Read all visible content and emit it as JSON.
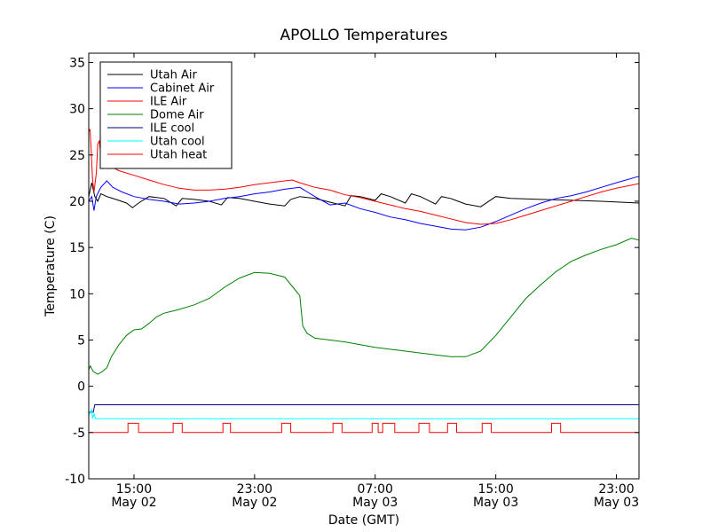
{
  "chart_data": {
    "type": "line",
    "title": "APOLLO Temperatures",
    "xlabel": "Date (GMT)",
    "ylabel": "Temperature (C)",
    "x_unit": "hours since May 02 11:00 GMT",
    "xlim": [
      0,
      36.5
    ],
    "ylim": [
      -10,
      36
    ],
    "yticks": [
      -10,
      -5,
      0,
      5,
      10,
      15,
      20,
      25,
      30,
      35
    ],
    "xticks": [
      {
        "value": 3,
        "time": "15:00",
        "date": "May 02"
      },
      {
        "value": 11,
        "time": "23:00",
        "date": "May 02"
      },
      {
        "value": 19,
        "time": "07:00",
        "date": "May 03"
      },
      {
        "value": 27,
        "time": "15:00",
        "date": "May 03"
      },
      {
        "value": 35,
        "time": "23:00",
        "date": "May 03"
      }
    ],
    "legend_position": "top-left",
    "series": [
      {
        "name": "Utah Air",
        "color": "#000000",
        "x": [
          0,
          0.2,
          0.4,
          0.6,
          0.8,
          1.2,
          1.8,
          2.5,
          2.9,
          3.3,
          4,
          5,
          5.8,
          6.2,
          7,
          8,
          8.8,
          9.2,
          10,
          11,
          12,
          13,
          13.4,
          14,
          15,
          16,
          17,
          17.4,
          18,
          19,
          19.4,
          20,
          21,
          21.4,
          22,
          23,
          23.4,
          24,
          25,
          26,
          27,
          28,
          30,
          32,
          34,
          36.5
        ],
        "y": [
          20.5,
          22,
          20.5,
          20,
          20.8,
          20.5,
          20.2,
          19.8,
          19.3,
          19.8,
          20.5,
          20.3,
          19.5,
          20.3,
          20.2,
          20,
          19.6,
          20.4,
          20.3,
          20,
          19.7,
          19.5,
          20.2,
          20.5,
          20.3,
          19.9,
          19.5,
          20.6,
          20.5,
          20.1,
          20.8,
          20.5,
          19.8,
          20.8,
          20.5,
          19.7,
          20.5,
          20.3,
          19.7,
          19.4,
          20.5,
          20.3,
          20.2,
          20.1,
          20,
          19.8
        ]
      },
      {
        "name": "Cabinet Air",
        "color": "#0000ff",
        "x": [
          0,
          0.2,
          0.35,
          0.5,
          0.8,
          1.2,
          1.6,
          2.2,
          3,
          4,
          5,
          6,
          7,
          8,
          9,
          10,
          11,
          12,
          13,
          14,
          14.5,
          15,
          16,
          17,
          18,
          19,
          20,
          21,
          22,
          23,
          24,
          25,
          26,
          27,
          28,
          29,
          30,
          31,
          32,
          33,
          34,
          35,
          36.5
        ],
        "y": [
          20,
          20.5,
          19,
          20.5,
          21.5,
          22.2,
          21.5,
          21,
          20.5,
          20.2,
          20,
          19.7,
          19.8,
          20,
          20.3,
          20.5,
          20.8,
          21,
          21.3,
          21.5,
          21,
          20.5,
          19.6,
          19.8,
          19.2,
          18.8,
          18.3,
          18,
          17.6,
          17.3,
          17,
          16.9,
          17.2,
          17.8,
          18.5,
          19.2,
          19.8,
          20.3,
          20.6,
          21,
          21.5,
          22,
          22.7
        ]
      },
      {
        "name": "ILE Air",
        "color": "#ff0000",
        "x": [
          0,
          0.08,
          0.15,
          0.25,
          0.35,
          0.5,
          0.6,
          0.7,
          0.8,
          1.2,
          2,
          3,
          4,
          5,
          6,
          7,
          8,
          9,
          10,
          11,
          12,
          13,
          13.5,
          14,
          15,
          16,
          17,
          18,
          19,
          20,
          21,
          22,
          23,
          24,
          25,
          26,
          27,
          28,
          29,
          30,
          31,
          32,
          33,
          34,
          35,
          36.5
        ],
        "y": [
          27.5,
          27.8,
          26,
          22.5,
          21,
          23,
          26.2,
          26.5,
          25,
          24,
          23.3,
          22.8,
          22.3,
          21.8,
          21.4,
          21.2,
          21.2,
          21.3,
          21.5,
          21.8,
          22,
          22.2,
          22.3,
          22,
          21.5,
          21.2,
          20.7,
          20.4,
          20,
          19.6,
          19.2,
          18.9,
          18.5,
          18.1,
          17.7,
          17.5,
          17.6,
          18,
          18.5,
          19,
          19.5,
          20,
          20.5,
          21,
          21.4,
          21.9
        ]
      },
      {
        "name": "Dome Air",
        "color": "#008000",
        "x": [
          0,
          0.1,
          0.3,
          0.6,
          0.9,
          1.2,
          1.5,
          2,
          2.5,
          3,
          3.5,
          4,
          4.5,
          5,
          5.5,
          6,
          7,
          8,
          9,
          10,
          11,
          12,
          13,
          13.5,
          14,
          14.2,
          14.5,
          15,
          16,
          17,
          18,
          19,
          20,
          21,
          22,
          23,
          24,
          25,
          26,
          27,
          28,
          29,
          30,
          31,
          32,
          33,
          34,
          35,
          36,
          36.5
        ],
        "y": [
          1.8,
          2.2,
          1.6,
          1.3,
          1.6,
          2,
          3.2,
          4.5,
          5.5,
          6.1,
          6.2,
          6.8,
          7.5,
          7.9,
          8.1,
          8.3,
          8.8,
          9.5,
          10.7,
          11.7,
          12.3,
          12.2,
          11.8,
          10.8,
          9.8,
          6.5,
          5.7,
          5.2,
          5,
          4.8,
          4.5,
          4.2,
          4,
          3.8,
          3.6,
          3.4,
          3.2,
          3.2,
          3.8,
          5.5,
          7.5,
          9.5,
          11,
          12.4,
          13.5,
          14.2,
          14.8,
          15.3,
          16,
          15.8
        ]
      },
      {
        "name": "ILE cool",
        "color": "#000080",
        "x": [
          0,
          0.3,
          0.4,
          36.5
        ],
        "y": [
          -2.8,
          -2.8,
          -2,
          -2
        ]
      },
      {
        "name": "Utah cool",
        "color": "#00ffff",
        "x": [
          0,
          0.2,
          0.25,
          0.35,
          0.45,
          36.5
        ],
        "y": [
          -3.2,
          -2.5,
          -3.5,
          -3,
          -3.5,
          -3.5
        ]
      },
      {
        "name": "Utah heat",
        "color": "#ff0000",
        "pulse_base": -5,
        "pulse_top": -4,
        "pulses": [
          [
            2.6,
            3.3
          ],
          [
            5.6,
            6.2
          ],
          [
            8.9,
            9.4
          ],
          [
            12.8,
            13.4
          ],
          [
            16.2,
            16.8
          ],
          [
            18.8,
            19.2
          ],
          [
            19.5,
            20.3
          ],
          [
            21.9,
            22.6
          ],
          [
            23.8,
            24.4
          ],
          [
            26.1,
            26.7
          ],
          [
            30.7,
            31.3
          ]
        ]
      }
    ]
  }
}
